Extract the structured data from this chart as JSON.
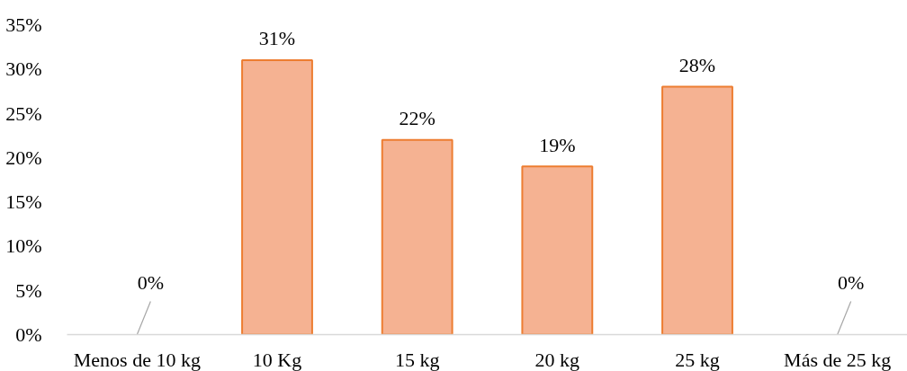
{
  "chart_data": {
    "type": "bar",
    "categories": [
      "Menos de 10 kg",
      "10 Kg",
      "15 kg",
      "20 kg",
      "25 kg",
      "Más de 25 kg"
    ],
    "values": [
      0,
      31,
      22,
      19,
      28,
      0
    ],
    "value_labels": [
      "0%",
      "31%",
      "22%",
      "19%",
      "28%",
      "0%"
    ],
    "color": "#f5b292",
    "ylim": [
      0,
      35
    ],
    "yticks": [
      {
        "value": 0,
        "label": "0%"
      },
      {
        "value": 5,
        "label": "5%"
      },
      {
        "value": 10,
        "label": "10%"
      },
      {
        "value": 15,
        "label": "15%"
      },
      {
        "value": 20,
        "label": "20%"
      },
      {
        "value": 25,
        "label": "25%"
      },
      {
        "value": 30,
        "label": "30%"
      },
      {
        "value": 35,
        "label": "35%"
      }
    ],
    "grid": false
  }
}
